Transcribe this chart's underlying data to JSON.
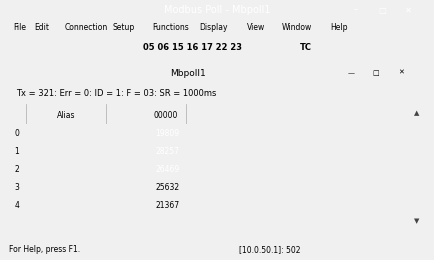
{
  "title_bar": "Modbus Poll - Mbpoll1",
  "menu_items": [
    "File",
    "Edit",
    "Connection",
    "Setup",
    "Functions",
    "Display",
    "View",
    "Window",
    "Help"
  ],
  "toolbar_numbers": "05 06 15 16 17 22 23",
  "toolbar_tc": "TC",
  "inner_title": "Mbpoll1",
  "status_line": "Tx = 321: Err = 0: ID = 1: F = 03: SR = 1000ms",
  "col_header_alias": "Alias",
  "col_header_addr": "00000",
  "rows": [
    {
      "index": "0",
      "alias": "",
      "value": "19809",
      "highlighted": true
    },
    {
      "index": "1",
      "alias": "",
      "value": "28257",
      "highlighted": true
    },
    {
      "index": "2",
      "alias": "",
      "value": "26469",
      "highlighted": true
    },
    {
      "index": "3",
      "alias": "",
      "value": "25632",
      "highlighted": false
    },
    {
      "index": "4",
      "alias": "",
      "value": "21367",
      "highlighted": false
    }
  ],
  "highlight_color": "#4DA6E8",
  "highlight_text_color": "#FFFFFF",
  "normal_text_color": "#000000",
  "status_bar_text_left": "For Help, press F1.",
  "status_bar_text_right": "[10.0.50.1]: 502",
  "bg_outer": "#F0F0F0",
  "bg_inner": "#FFFFFF",
  "bg_title_bar": "#FFFFFF",
  "bg_inner_title": "#D6E4F0",
  "cell_border_color": "#AAAAAA",
  "index_col_color": "#E8E8E8",
  "alias_col_color": "#F5F5F5",
  "scrollbar_color": "#D0D0D0"
}
